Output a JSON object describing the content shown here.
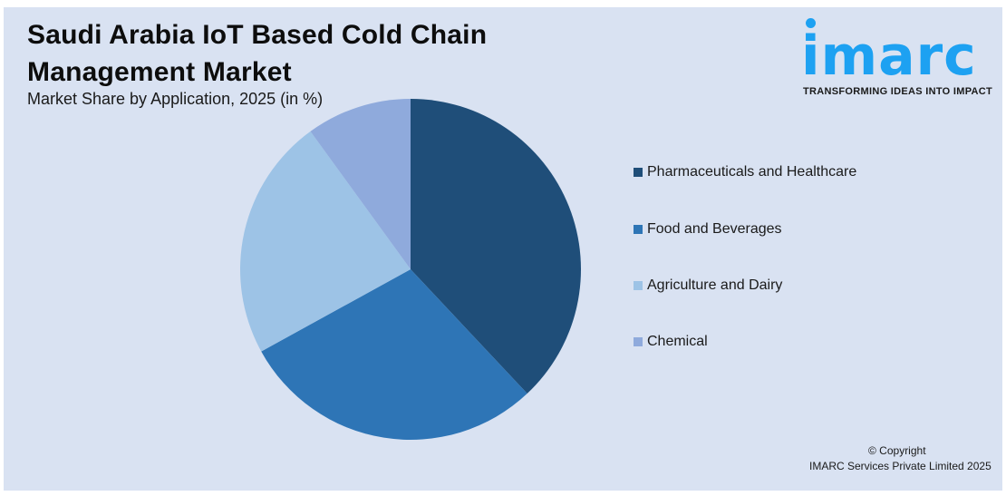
{
  "header": {
    "title_line1": "Saudi Arabia IoT Based Cold Chain",
    "title_line2": "Management Market",
    "subtitle": "Market Share by Application, 2025 (in %)"
  },
  "logo": {
    "brand": "imarc",
    "tagline": "TRANSFORMING IDEAS INTO IMPACT",
    "color": "#1da1f2"
  },
  "footer": {
    "copyright_line1": "© Copyright",
    "copyright_line2": "IMARC Services Private Limited 2025"
  },
  "colors": {
    "background": "#d9e2f2",
    "pharma": "#1f4e79",
    "food": "#2e75b6",
    "agriculture": "#9dc3e6",
    "chemical": "#8faadc"
  },
  "chart_data": {
    "type": "pie",
    "title": "Saudi Arabia IoT Based Cold Chain Management Market",
    "subtitle": "Market Share by Application, 2025 (in %)",
    "categories": [
      "Pharmaceuticals and Healthcare",
      "Food and Beverages",
      "Agriculture and Dairy",
      "Chemical"
    ],
    "values": [
      38,
      29,
      23,
      10
    ],
    "colors": [
      "#1f4e79",
      "#2e75b6",
      "#9dc3e6",
      "#8faadc"
    ],
    "start_angle": "12 o'clock, clockwise",
    "legend_position": "right",
    "data_labels": false
  },
  "legend": {
    "items": [
      {
        "label": "Pharmaceuticals and Healthcare",
        "color": "#1f4e79"
      },
      {
        "label": "Food and Beverages",
        "color": "#2e75b6"
      },
      {
        "label": "Agriculture and Dairy",
        "color": "#9dc3e6"
      },
      {
        "label": "Chemical",
        "color": "#8faadc"
      }
    ]
  }
}
